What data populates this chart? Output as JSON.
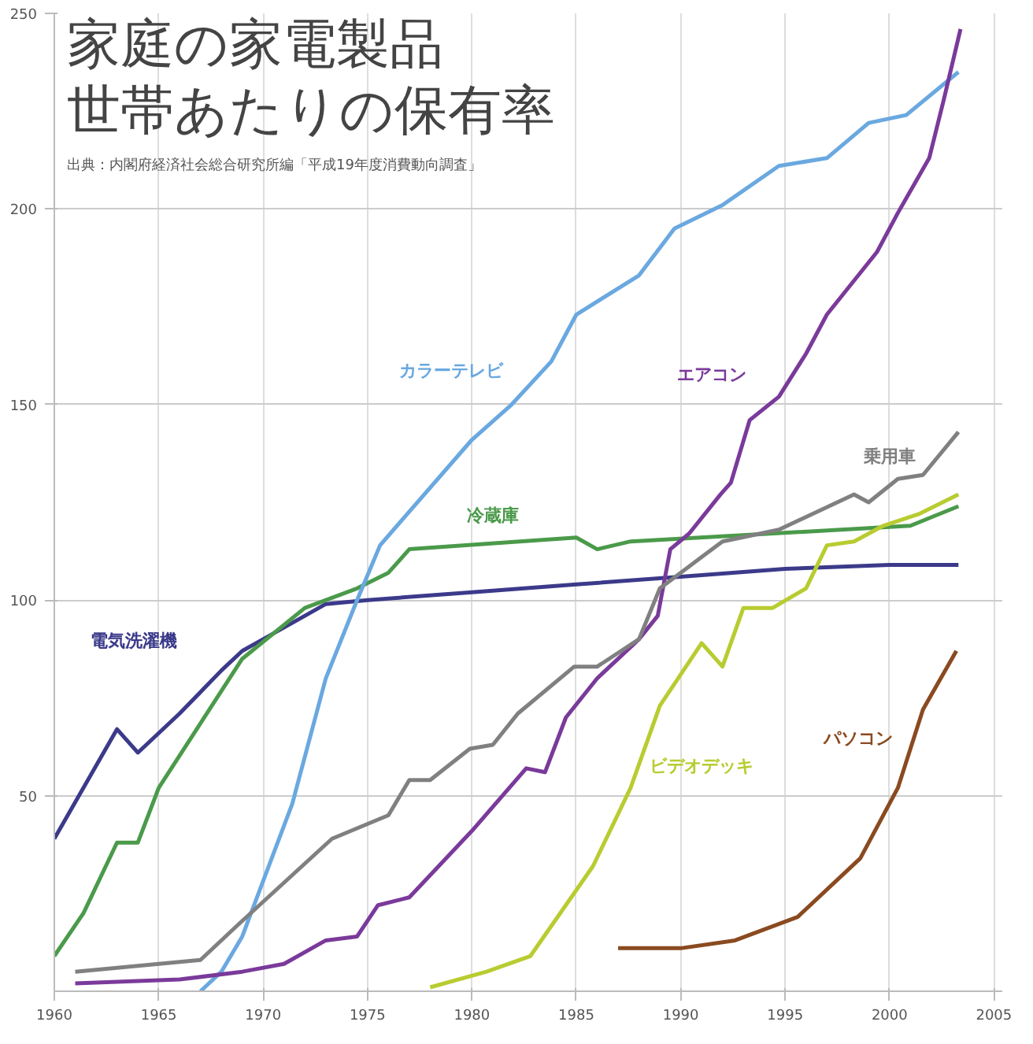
{
  "chart_data": {
    "type": "line",
    "title": "家庭の家電製品",
    "subtitle": "世帯あたりの保有率",
    "annotations": [
      "出典：内閣府経済社会総合研究所編「平成19年度消費動向調査」"
    ],
    "xlim": [
      1960,
      2005.4
    ],
    "xticks": [
      1960,
      1965,
      1970,
      1975,
      1980,
      1985,
      1990,
      1995,
      2000,
      2005
    ],
    "ylim": [
      0,
      250
    ],
    "yticks": [
      50,
      100,
      150,
      200,
      250
    ],
    "grid": true,
    "marker": "none",
    "line_style": "solid",
    "series": [
      {
        "name": "電気洗濯機",
        "color": "#3b3a8a",
        "x": [
          1960,
          1963,
          1964,
          1966,
          1968,
          1969,
          1970,
          1972,
          1973,
          1975,
          1980,
          1985,
          1990,
          1995,
          2000,
          2003.3
        ],
        "values": [
          39,
          67,
          61,
          71,
          82,
          87,
          90,
          96,
          99,
          100,
          102,
          104,
          106,
          108,
          109,
          109
        ]
      },
      {
        "name": "冷蔵庫",
        "color": "#4a9a4a",
        "x": [
          1960,
          1961.4,
          1963,
          1964,
          1965,
          1969,
          1972,
          1974.5,
          1976,
          1977,
          1985,
          1986,
          1987.6,
          2001,
          2003.3
        ],
        "values": [
          9,
          20,
          38,
          38,
          52,
          85,
          98,
          103,
          107,
          113,
          116,
          113,
          115,
          119,
          124
        ]
      },
      {
        "name": "カラーテレビ",
        "color": "#6aa8e0",
        "x": [
          1967,
          1968,
          1969,
          1971.4,
          1973,
          1974.5,
          1975.6,
          1976.9,
          1980,
          1981.9,
          1983.8,
          1985,
          1988,
          1989.7,
          1992,
          1994.7,
          1997,
          1999,
          2000.8,
          2003.3
        ],
        "values": [
          0,
          5,
          14,
          48,
          80,
          100,
          114,
          122,
          141,
          150,
          161,
          173,
          183,
          195,
          201,
          211,
          213,
          222,
          224,
          235
        ]
      },
      {
        "name": "エアコン",
        "color": "#7a3a9a",
        "x": [
          1961,
          1966,
          1969,
          1971,
          1973,
          1974.5,
          1975.5,
          1977,
          1980,
          1982.6,
          1983.5,
          1984.5,
          1986,
          1988,
          1988.9,
          1989.5,
          1990.4,
          1991.9,
          1992.4,
          1993.3,
          1994.7,
          1996,
          1997,
          1999.4,
          2000.4,
          2001.9,
          2002.6,
          2003.4
        ],
        "values": [
          2,
          3,
          5,
          7,
          13,
          14,
          22,
          24,
          41,
          57,
          56,
          70,
          80,
          90,
          96,
          113,
          117,
          127,
          130,
          146,
          152,
          163,
          173,
          189,
          199,
          213,
          228,
          246
        ]
      },
      {
        "name": "乗用車",
        "color": "#808080",
        "x": [
          1961,
          1965,
          1967,
          1968.8,
          1973.3,
          1976,
          1977,
          1978,
          1979.9,
          1981,
          1982.2,
          1984.9,
          1986,
          1988,
          1989,
          1990,
          1991,
          1992,
          1994.7,
          1998.3,
          1999,
          2000.4,
          2001.6,
          2003.3
        ],
        "values": [
          5,
          7,
          8,
          17,
          39,
          45,
          54,
          54,
          62,
          63,
          71,
          83,
          83,
          90,
          103,
          107,
          111,
          115,
          118,
          127,
          125,
          131,
          132,
          143
        ]
      },
      {
        "name": "ビデオデッキ",
        "color": "#b8cc30",
        "x": [
          1978,
          1980.7,
          1982.8,
          1985.8,
          1987.6,
          1989,
          1991,
          1992,
          1993,
          1994.4,
          1996,
          1997,
          1998.3,
          1999.7,
          2001.4,
          2003.3
        ],
        "values": [
          1,
          5,
          9,
          32,
          52,
          73,
          89,
          83,
          98,
          98,
          103,
          114,
          115,
          119,
          122,
          127
        ]
      },
      {
        "name": "パソコン",
        "color": "#8a4a20",
        "x": [
          1987,
          1990,
          1992.6,
          1995.6,
          1998.6,
          2000.4,
          2001.6,
          2003.2
        ],
        "values": [
          11,
          11,
          13,
          19,
          34,
          52,
          72,
          87
        ]
      }
    ]
  }
}
